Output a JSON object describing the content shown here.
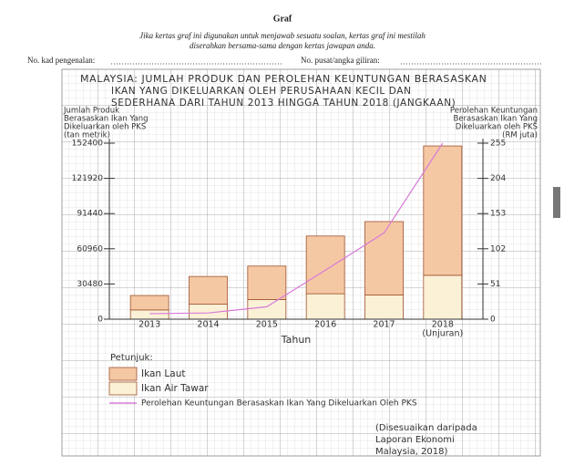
{
  "header": {
    "title": "Graf",
    "instructions": [
      "Jika kertas graf ini digunakan untuk menjawab sesuatu soalan, kertas graf ini mestilah",
      "diserahkan bersama-sama dengan kertas jawapan anda."
    ],
    "id_label": "No. kad pengenalan:",
    "center_label": "No. pusat/angka giliran:"
  },
  "chart_data": {
    "type": "bar",
    "stacked": true,
    "title": [
      "MALAYSIA: JUMLAH PRODUK DAN PEROLEHAN KEUNTUNGAN BERASASKAN",
      "IKAN YANG DIKELUARKAN OLEH PERUSAHAAN KECIL DAN",
      "SEDERHANA DARI TAHUN 2013 HINGGA TAHUN 2018 (JANGKAAN)"
    ],
    "y_label": [
      "Jumlah Produk",
      "Berasaskan Ikan Yang",
      "Dikeluarkan oleh PKS",
      "(tan metrik)"
    ],
    "y2_label": [
      "Perolehan Keuntungan",
      "Berasaskan Ikan Yang",
      "Dikeluarkan oleh PKS",
      "(RM juta)"
    ],
    "x_label": "Tahun",
    "categories": [
      "2013",
      "2014",
      "2015",
      "2016",
      "2017",
      "2018"
    ],
    "annotation": "(Unjuran)",
    "series": [
      {
        "name": "Ikan Laut",
        "color": "#f5c8a4",
        "values": [
          12500,
          24000,
          29000,
          50000,
          63500,
          112000
        ]
      },
      {
        "name": "Ikan Air Tawar",
        "color": "#fbf1d6",
        "values": [
          8000,
          13000,
          17000,
          22000,
          21000,
          38000
        ]
      },
      {
        "name": "Perolehan Keuntungan Berasaskan Ikan Yang Dikeluarkan Oleh PKS",
        "color": "#d87ad8",
        "type": "line",
        "axis": "y2",
        "values": [
          8,
          9,
          18,
          71,
          125,
          255
        ]
      }
    ],
    "ylim": [
      0,
      152400
    ],
    "yticks": [
      0,
      30480,
      60960,
      91440,
      121920,
      152400
    ],
    "y2lim": [
      0,
      255
    ],
    "y2ticks": [
      0,
      51,
      102,
      153,
      204,
      255
    ],
    "legend_title": "Petunjuk:",
    "source": [
      "(Disesuaikan daripada",
      "Laporan Ekonomi",
      "Malaysia, 2018)"
    ]
  }
}
